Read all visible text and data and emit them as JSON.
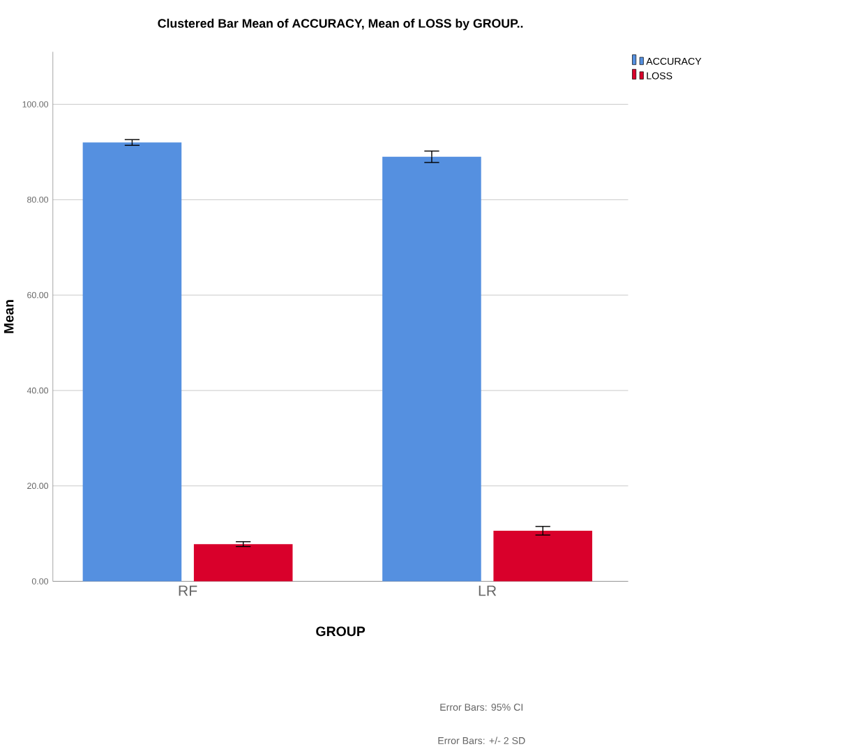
{
  "chart_data": {
    "type": "bar",
    "title": "Clustered Bar Mean of ACCURACY, Mean of LOSS by GROUP..",
    "xlabel": "GROUP",
    "ylabel": "Mean",
    "categories": [
      "RF",
      "LR"
    ],
    "series": [
      {
        "name": "ACCURACY",
        "color": "#5590e0",
        "values": [
          92.0,
          89.0
        ],
        "errors": [
          0.6,
          1.2
        ]
      },
      {
        "name": "LOSS",
        "color": "#d9002b",
        "values": [
          7.8,
          10.6
        ],
        "errors": [
          0.5,
          0.9
        ]
      }
    ],
    "ylim": [
      0,
      111
    ],
    "yticks": [
      {
        "value": 0,
        "label": "0.00"
      },
      {
        "value": 20,
        "label": "20.00"
      },
      {
        "value": 40,
        "label": "40.00"
      },
      {
        "value": 60,
        "label": "60.00"
      },
      {
        "value": 80,
        "label": "80.00"
      },
      {
        "value": 100,
        "label": "100.00"
      }
    ],
    "grid": "y",
    "legend": "top right",
    "annotations": [
      "Error Bars: 95% CI",
      "Error Bars: +/- 2 SD"
    ]
  }
}
